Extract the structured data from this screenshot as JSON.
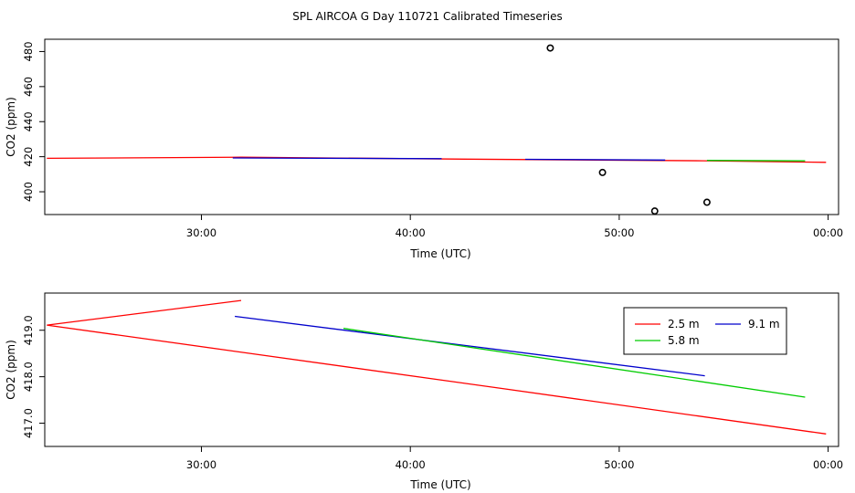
{
  "title": "SPL AIRCOA G  Day 110721  Calibrated Timeseries",
  "colors": {
    "2.5 m": "#ff0000",
    "5.8 m": "#00cc00",
    "9.1 m": "#0000cc",
    "points": "#000000"
  },
  "chart_data": [
    {
      "type": "line",
      "xlabel": "Time (UTC)",
      "ylabel": "CO2 (ppm)",
      "xlim": [
        "22:30",
        "00:30"
      ],
      "ylim": [
        387,
        487
      ],
      "xticks": [
        "30:00",
        "40:00",
        "50:00",
        "00:00"
      ],
      "yticks": [
        "400",
        "420",
        "440",
        "460",
        "480"
      ],
      "grid": false,
      "series": [
        {
          "color_key": "2.5 m",
          "segments": [
            {
              "x": [
                "22:36",
                "31:54",
                "42:36",
                "54:00",
                "59:54"
              ],
              "y": [
                419.1,
                419.7,
                418.6,
                417.7,
                416.8
              ]
            }
          ]
        },
        {
          "color_key": "9.1 m",
          "segments": [
            {
              "x": [
                "31:30",
                "41:30"
              ],
              "y": [
                419.3,
                418.9
              ]
            },
            {
              "x": [
                "45:30",
                "52:12"
              ],
              "y": [
                418.5,
                418.1
              ]
            }
          ]
        },
        {
          "color_key": "5.8 m",
          "segments": [
            {
              "x": [
                "54:12",
                "58:54"
              ],
              "y": [
                417.9,
                417.6
              ]
            }
          ]
        }
      ],
      "points": {
        "x": [
          "46:42",
          "49:12",
          "51:42",
          "54:12"
        ],
        "y": [
          482,
          411,
          389,
          394
        ]
      }
    },
    {
      "type": "line",
      "xlabel": "Time (UTC)",
      "ylabel": "CO2 (ppm)",
      "xlim": [
        "22:30",
        "00:30"
      ],
      "ylim": [
        416.5,
        419.8
      ],
      "xticks": [
        "30:00",
        "40:00",
        "50:00",
        "00:00"
      ],
      "yticks": [
        "417.0",
        "418.0",
        "419.0"
      ],
      "yticks_val": [
        417.0,
        418.0,
        419.0
      ],
      "grid": false,
      "legend": {
        "placement": "top-right",
        "entries": [
          "2.5 m",
          "9.1 m",
          "5.8 m"
        ]
      },
      "series": [
        {
          "name": "2.5 m",
          "x": [
            "31:54",
            "22:36",
            "44:30",
            "59:54"
          ],
          "y": [
            419.64,
            419.11,
            417.74,
            416.77
          ]
        },
        {
          "name": "9.1 m",
          "x": [
            "31:36",
            "54:06"
          ],
          "y": [
            419.3,
            418.02
          ]
        },
        {
          "name": "5.8 m",
          "x": [
            "36:48",
            "58:54"
          ],
          "y": [
            419.04,
            417.56
          ]
        }
      ]
    }
  ]
}
